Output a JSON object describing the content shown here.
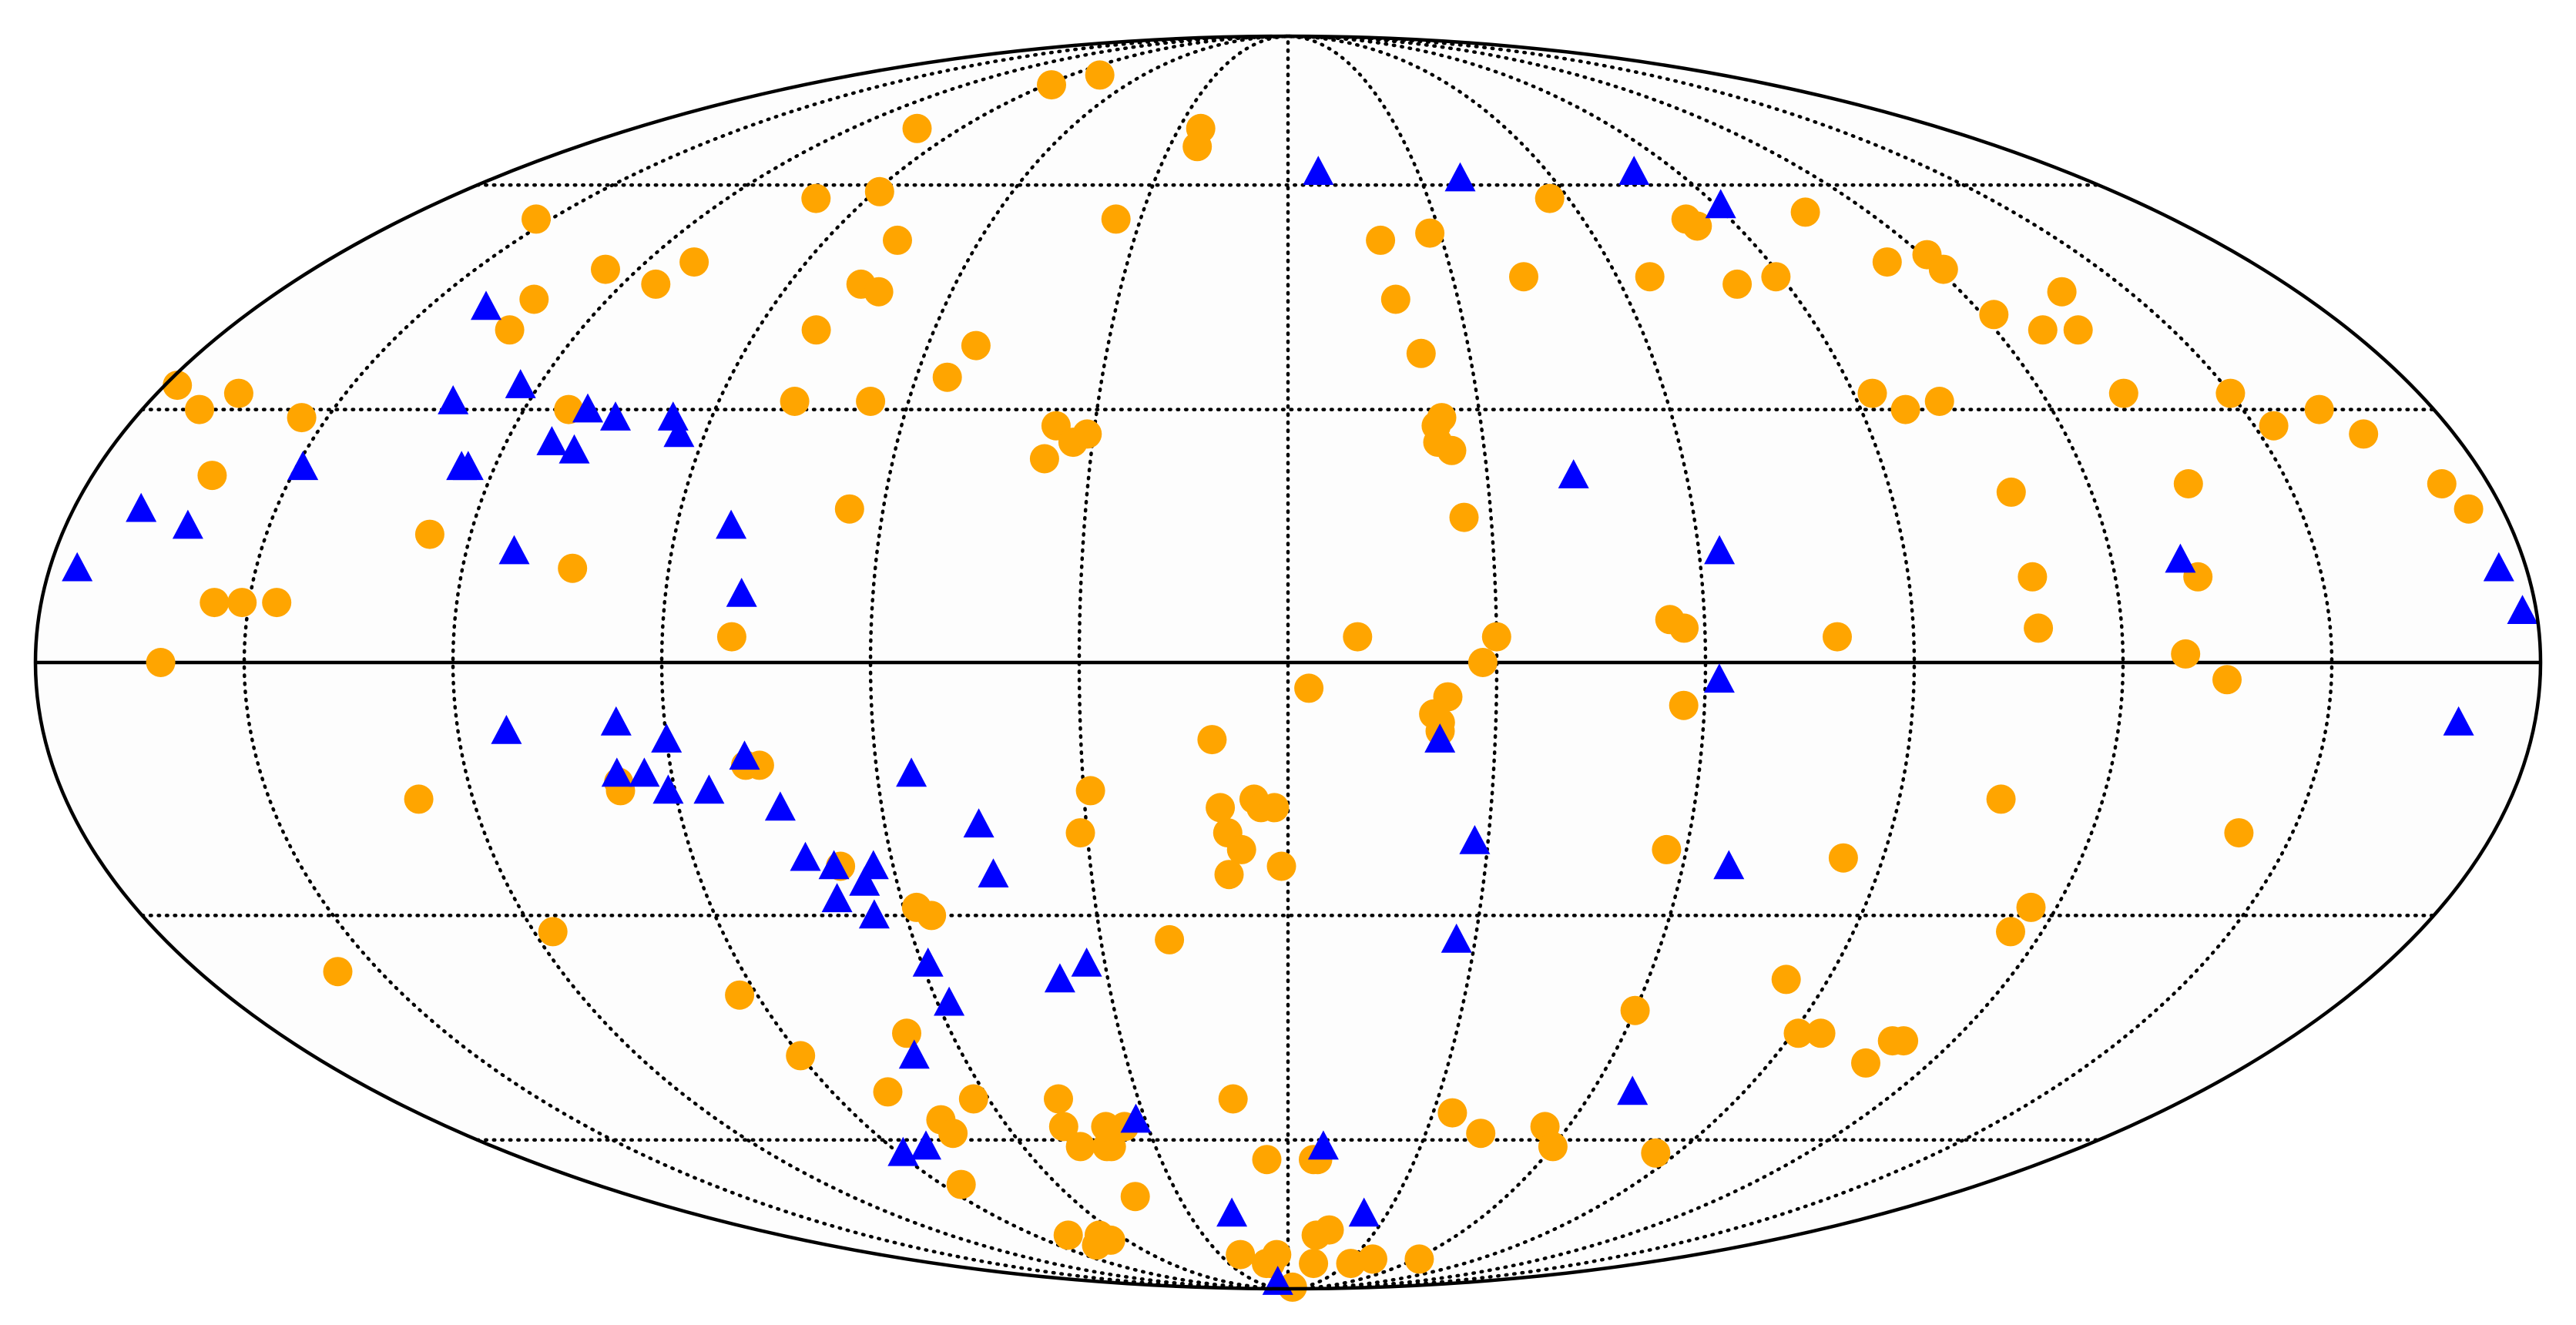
{
  "chart_data": {
    "type": "scatter",
    "projection": "mollweide",
    "title": "",
    "xlabel": "",
    "ylabel": "",
    "grid": true,
    "legend": "none",
    "graticule": {
      "meridians_deg": [
        -150,
        -120,
        -90,
        -60,
        -30,
        0,
        30,
        60,
        90,
        120,
        150
      ],
      "parallels_deg": [
        -60,
        -30,
        30,
        60
      ],
      "equator_solid": true
    },
    "colors": {
      "circles": "#FFA500",
      "triangles": "#0000FF",
      "outline": "#000000",
      "background": "#FDFDFD"
    },
    "series": [
      {
        "marker": "circle",
        "color": "#FFA500",
        "points": [
          [
            -153,
            55
          ],
          [
            -178,
            33
          ],
          [
            -171,
            30
          ],
          [
            -167,
            32
          ],
          [
            -162,
            22
          ],
          [
            -162,
            0
          ],
          [
            -98,
            -14
          ],
          [
            -157,
            -37
          ],
          [
            -128,
            -16
          ],
          [
            -117,
            -32
          ],
          [
            -132,
            40
          ],
          [
            -113,
            30
          ],
          [
            -114,
            46
          ],
          [
            -111,
            49
          ],
          [
            -133,
            44
          ],
          [
            -126,
            48
          ],
          [
            -126,
            15
          ],
          [
            -104,
            11
          ],
          [
            -98,
            -15
          ],
          [
            -154,
            29
          ],
          [
            -155,
            7
          ],
          [
            -151,
            7
          ],
          [
            -146,
            7
          ],
          [
            -101,
            58
          ],
          [
            -102,
            69
          ],
          [
            -88,
            77
          ],
          [
            -78,
            79
          ],
          [
            -76,
            52
          ],
          [
            -89,
            59
          ],
          [
            -80,
            40
          ],
          [
            -77,
            46
          ],
          [
            -66,
            31
          ],
          [
            -65,
            18
          ],
          [
            -78,
            31
          ],
          [
            -73,
            45
          ],
          [
            -52,
            38
          ],
          [
            -55,
            34
          ],
          [
            -36,
            28
          ],
          [
            -37,
            24
          ],
          [
            -33,
            26
          ],
          [
            -31,
            27
          ],
          [
            -35,
            55
          ],
          [
            -23,
            66
          ],
          [
            -24,
            69
          ],
          [
            -80,
            3
          ],
          [
            -79,
            -12
          ],
          [
            -77,
            -12
          ],
          [
            -93,
            -40
          ],
          [
            -90,
            -48
          ],
          [
            -68,
            -45
          ],
          [
            -73,
            -57
          ],
          [
            -73,
            -59
          ],
          [
            -85,
            -67
          ],
          [
            -78,
            -76
          ],
          [
            -75,
            -78
          ],
          [
            -67,
            -76
          ],
          [
            -66,
            -77
          ],
          [
            -79,
            -53
          ],
          [
            -68,
            -24
          ],
          [
            -58,
            -29
          ],
          [
            -56,
            -30
          ],
          [
            -63,
            -54
          ],
          [
            -46,
            -54
          ],
          [
            -48,
            -58
          ],
          [
            -41,
            -61
          ],
          [
            -47,
            -61
          ],
          [
            -35,
            -58
          ],
          [
            -40,
            -61
          ],
          [
            -42,
            -69
          ],
          [
            -39,
            -58
          ],
          [
            -31,
            -20
          ],
          [
            -29,
            -15
          ],
          [
            -19,
            -33
          ],
          [
            -11,
            -54
          ],
          [
            -5,
            -63
          ],
          [
            -9,
            -82
          ],
          [
            -11,
            -82
          ],
          [
            -21,
            -80
          ],
          [
            -5,
            -80
          ],
          [
            -11,
            -9
          ],
          [
            -9,
            -20
          ],
          [
            -10,
            -17
          ],
          [
            -7,
            -22
          ],
          [
            -9,
            -25
          ],
          [
            -5,
            -16
          ],
          [
            -4,
            -17
          ],
          [
            -2,
            -17
          ],
          [
            -1,
            -24
          ],
          [
            3,
            -3
          ],
          [
            10,
            3
          ],
          [
            6,
            -63
          ],
          [
            7,
            -63
          ],
          [
            10,
            -76
          ],
          [
            9,
            -89
          ],
          [
            13,
            -82
          ],
          [
            14,
            -75
          ],
          [
            18,
            52
          ],
          [
            19,
            44
          ],
          [
            22,
            37
          ],
          [
            23,
            28
          ],
          [
            23,
            26
          ],
          [
            24,
            29
          ],
          [
            25,
            25
          ],
          [
            26,
            17
          ],
          [
            22,
            -7
          ],
          [
            22,
            -8
          ],
          [
            21,
            -6
          ],
          [
            23,
            -4
          ],
          [
            28,
            0
          ],
          [
            30,
            3
          ],
          [
            43,
            47
          ],
          [
            28,
            53
          ],
          [
            56,
            58
          ],
          [
            66,
            47
          ],
          [
            55,
            -58
          ],
          [
            42,
            -59
          ],
          [
            34,
            -56
          ],
          [
            40,
            -81
          ],
          [
            32,
            -82
          ],
          [
            62,
            -81
          ],
          [
            55,
            5
          ],
          [
            57,
            4
          ],
          [
            57,
            -5
          ],
          [
            57,
            -22
          ],
          [
            60,
            -42
          ],
          [
            60,
            -61
          ],
          [
            79,
            3
          ],
          [
            81,
            46
          ],
          [
            89,
            47
          ],
          [
            81,
            55
          ],
          [
            82,
            54
          ],
          [
            93,
            32
          ],
          [
            97,
            30
          ],
          [
            108,
            20
          ],
          [
            108,
            10
          ],
          [
            108,
            4
          ],
          [
            135,
            21
          ],
          [
            121,
            50
          ],
          [
            121,
            48
          ],
          [
            122,
            42
          ],
          [
            134,
            40
          ],
          [
            133,
            32
          ],
          [
            129,
            1
          ],
          [
            135,
            -2
          ],
          [
            84,
            -23
          ],
          [
            105,
            -16
          ],
          [
            115,
            -32
          ],
          [
            116,
            -29
          ],
          [
            142,
            -20
          ],
          [
            83,
            -38
          ],
          [
            91,
            -45
          ],
          [
            95,
            -45
          ],
          [
            109,
            -46
          ],
          [
            111,
            -46
          ],
          [
            108,
            -49
          ],
          [
            85,
            -62
          ],
          [
            112,
            49
          ],
          [
            107,
            56
          ],
          [
            128,
            40
          ],
          [
            162,
            30
          ],
          [
            138,
            45
          ],
          [
            150,
            32
          ],
          [
            153,
            28
          ],
          [
            166,
            27
          ],
          [
            175,
            18
          ],
          [
            173,
            21
          ],
          [
            132,
            10
          ],
          [
            103,
            31
          ]
        ]
      },
      {
        "marker": "triangle",
        "color": "#0000FF",
        "points": [
          [
            -162,
            16
          ],
          [
            -140,
            43
          ],
          [
            -132,
            31
          ],
          [
            -113,
            -8
          ],
          [
            -98,
            -13
          ],
          [
            -123,
            33
          ],
          [
            -176,
            11
          ],
          [
            -170,
            18
          ],
          [
            -149,
            23
          ],
          [
            -125,
            23
          ],
          [
            -124,
            23
          ],
          [
            -113,
            13
          ],
          [
            -105,
            29
          ],
          [
            -110,
            30
          ],
          [
            -109,
            25
          ],
          [
            -113,
            26
          ],
          [
            -96,
            29
          ],
          [
            -94,
            27
          ],
          [
            -82,
            16
          ],
          [
            -79,
            8
          ],
          [
            -97,
            -7
          ],
          [
            -94,
            -13
          ],
          [
            -91,
            -15
          ],
          [
            -85,
            -15
          ],
          [
            -90,
            -9
          ],
          [
            -79,
            -11
          ],
          [
            -75,
            -17
          ],
          [
            -73,
            -23
          ],
          [
            -69,
            -24
          ],
          [
            -70,
            -28
          ],
          [
            -65,
            -26
          ],
          [
            -63,
            -24
          ],
          [
            -65,
            -30
          ],
          [
            -58,
            -41
          ],
          [
            -59,
            -36
          ],
          [
            -55,
            -13
          ],
          [
            -45,
            -25
          ],
          [
            -38,
            -38
          ],
          [
            -33,
            -36
          ],
          [
            -32,
            -57
          ],
          [
            -46,
            -19
          ],
          [
            -69,
            -48
          ],
          [
            -89,
            -62
          ],
          [
            -17,
            -72
          ],
          [
            -82,
            -61
          ],
          [
            -10,
            -87
          ],
          [
            7,
            62
          ],
          [
            8,
            -61
          ],
          [
            22,
            -9
          ],
          [
            28,
            -21
          ],
          [
            27,
            -33
          ],
          [
            23,
            -72
          ],
          [
            39,
            61
          ],
          [
            43,
            22
          ],
          [
            63,
            13
          ],
          [
            62,
            -2
          ],
          [
            67,
            -24
          ],
          [
            68,
            -53
          ],
          [
            91,
            57
          ],
          [
            80,
            62
          ],
          [
            176,
            11
          ],
          [
            178,
            6
          ],
          [
            130,
            12
          ],
          [
            169,
            -7
          ]
        ]
      }
    ]
  }
}
